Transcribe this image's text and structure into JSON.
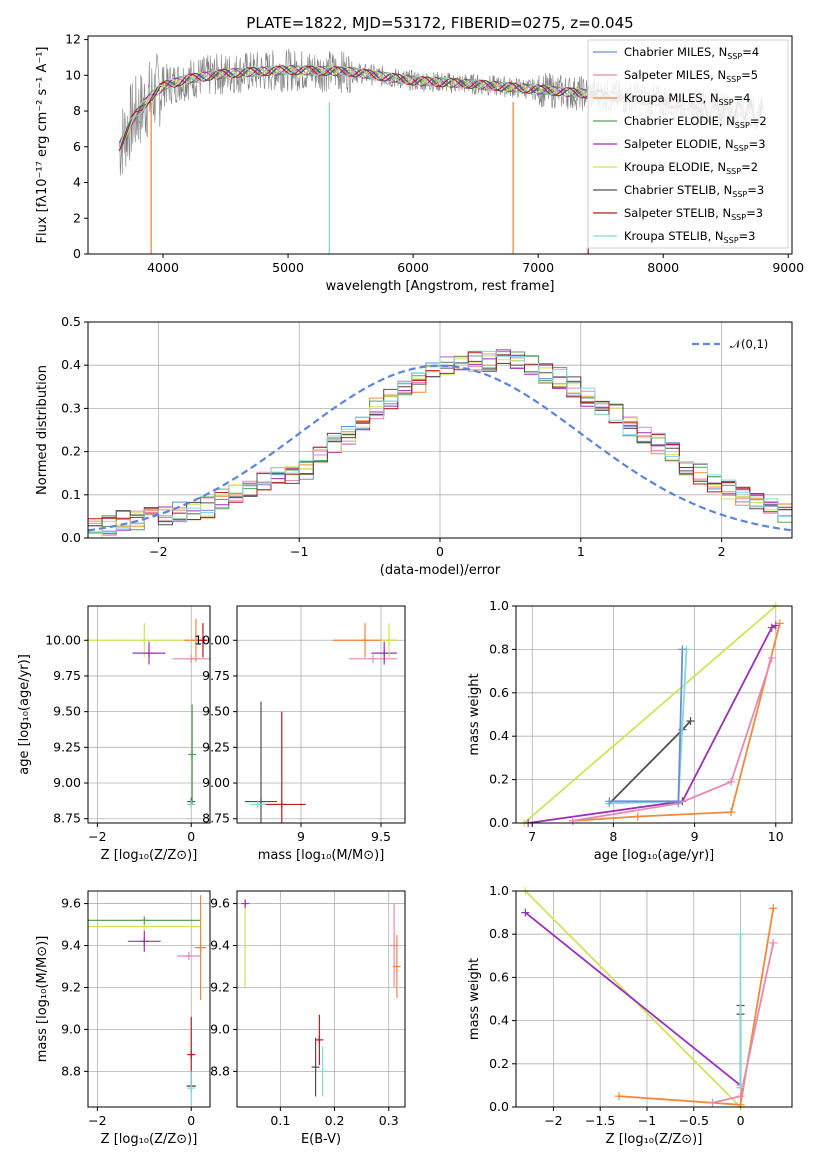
{
  "title": "PLATE=1822, MJD=53172, FIBERID=0275, z=0.045",
  "colors": {
    "Chabrier MILES": "#6b8ed6",
    "Salpeter MILES": "#e889b4",
    "Kroupa MILES": "#f08a3c",
    "Chabrier ELODIE": "#5aa05a",
    "Salpeter ELODIE": "#9b30b8",
    "Kroupa ELODIE": "#d2e25a",
    "Chabrier STELIB": "#505050",
    "Salpeter STELIB": "#b51e1e",
    "Kroupa STELIB": "#86d8e0",
    "data": "#7f7f7f",
    "normal": "#5b86d6"
  },
  "chart_data": [
    {
      "type": "line",
      "xlabel": "wavelength [Angstrom, rest frame]",
      "ylabel": "Flux [fλ10⁻¹⁷ erg cm⁻² s⁻¹ A⁻¹]",
      "xlim": [
        3400,
        9030
      ],
      "ylim": [
        0,
        12.2
      ],
      "xticks": [
        4000,
        5000,
        6000,
        7000,
        8000,
        9000
      ],
      "yticks": [
        0,
        2,
        4,
        6,
        8,
        10,
        12
      ],
      "legend": "right",
      "legend_entries": [
        "Chabrier MILES, N_SSP=4",
        "Salpeter MILES, N_SSP=5",
        "Kroupa MILES, N_SSP=4",
        "Chabrier ELODIE, N_SSP=2",
        "Salpeter ELODIE, N_SSP=3",
        "Kroupa ELODIE, N_SSP=2",
        "Chabrier STELIB, N_SSP=3",
        "Salpeter STELIB, N_SSP=3",
        "Kroupa STELIB, N_SSP=3"
      ],
      "model_continuum": {
        "x": [
          3650,
          3750,
          3900,
          4000,
          4200,
          4500,
          5000,
          5500,
          6000,
          6500,
          7000,
          7500,
          8000,
          8500,
          8800
        ],
        "y": [
          6.0,
          7.5,
          8.8,
          9.4,
          9.8,
          10.1,
          10.3,
          10.2,
          9.7,
          9.5,
          9.2,
          8.9,
          8.5,
          8.0,
          7.8
        ]
      }
    },
    {
      "type": "step",
      "xlabel": "(data-model)/error",
      "ylabel": "Normed distribution",
      "xlim": [
        -2.5,
        2.5
      ],
      "ylim": [
        0,
        0.5
      ],
      "xticks": [
        -2,
        -1,
        0,
        1,
        2
      ],
      "yticks": [
        0.0,
        0.1,
        0.2,
        0.3,
        0.4,
        0.5
      ],
      "legend_label": "𝒩(0,1)",
      "bin_edges_start": -2.5,
      "bin_width": 0.1,
      "histogram_base": [
        0.02,
        0.03,
        0.04,
        0.04,
        0.05,
        0.05,
        0.06,
        0.06,
        0.07,
        0.09,
        0.1,
        0.11,
        0.13,
        0.14,
        0.15,
        0.16,
        0.19,
        0.22,
        0.24,
        0.27,
        0.3,
        0.32,
        0.34,
        0.36,
        0.39,
        0.4,
        0.4,
        0.41,
        0.41,
        0.42,
        0.41,
        0.4,
        0.38,
        0.37,
        0.35,
        0.33,
        0.31,
        0.29,
        0.26,
        0.24,
        0.22,
        0.2,
        0.17,
        0.15,
        0.13,
        0.11,
        0.1,
        0.09,
        0.07,
        0.06
      ],
      "normal": {
        "mu": 0,
        "sigma": 1
      }
    },
    {
      "type": "scatter",
      "xlabel": "Z [log₁₀(Z/Z⊙)]",
      "ylabel": "age  [log₁₀(age/yr)]",
      "xlim": [
        -2.2,
        0.4
      ],
      "ylim": [
        8.72,
        10.24
      ],
      "xticks": [
        -2,
        0
      ],
      "yticks": [
        8.75,
        9.0,
        9.25,
        9.5,
        9.75,
        10.0
      ],
      "points": [
        {
          "m": "Kroupa ELODIE",
          "x": -1.0,
          "y": 10.0,
          "ex": 1.2,
          "ey": 0.12
        },
        {
          "m": "Salpeter ELODIE",
          "x": -0.9,
          "y": 9.91,
          "ex": 0.35,
          "ey": 0.08
        },
        {
          "m": "Salpeter MILES",
          "x": 0.0,
          "y": 9.87,
          "ex": 0.4,
          "ey": 0.0
        },
        {
          "m": "Kroupa MILES",
          "x": 0.1,
          "y": 10.0,
          "ex": 0.25,
          "ey": 0.15
        },
        {
          "m": "Salpeter STELIB",
          "x": 0.25,
          "y": 10.0,
          "ex": 0.05,
          "ey": 0.12
        },
        {
          "m": "Chabrier STELIB",
          "x": 0.0,
          "y": 8.87,
          "ex": 0.03,
          "ey": 0.0
        },
        {
          "m": "Kroupa STELIB",
          "x": 0.0,
          "y": 8.85,
          "ex": 0.05,
          "ey": 0.0
        },
        {
          "m": "Chabrier ELODIE",
          "x": 0.02,
          "y": 9.2,
          "ex": 0.0,
          "ey": 0.35
        }
      ]
    },
    {
      "type": "scatter",
      "xlabel": "mass [log₁₀(M/M⊙)]",
      "ylabel": "",
      "xlim": [
        8.6,
        9.65
      ],
      "ylim": [
        8.72,
        10.24
      ],
      "xticks": [
        9.0,
        9.5
      ],
      "yticks": [
        8.75,
        9.0,
        9.25,
        9.5,
        9.75,
        10.0
      ],
      "points": [
        {
          "m": "Kroupa MILES",
          "x": 9.4,
          "y": 10.0,
          "ex": 0.2,
          "ey": 0.12
        },
        {
          "m": "Salpeter MILES",
          "x": 9.45,
          "y": 9.87,
          "ex": 0.15,
          "ey": 0.0
        },
        {
          "m": "Salpeter ELODIE",
          "x": 9.52,
          "y": 9.91,
          "ex": 0.08,
          "ey": 0.08
        },
        {
          "m": "Kroupa ELODIE",
          "x": 9.55,
          "y": 10.0,
          "ex": 0.05,
          "ey": 0.12
        },
        {
          "m": "Chabrier STELIB",
          "x": 8.75,
          "y": 8.87,
          "ex": 0.1,
          "ey": 0.7
        },
        {
          "m": "Salpeter STELIB",
          "x": 8.88,
          "y": 8.85,
          "ex": 0.15,
          "ey": 0.65
        },
        {
          "m": "Kroupa STELIB",
          "x": 8.73,
          "y": 8.85,
          "ex": 0.05,
          "ey": 0.0
        }
      ]
    },
    {
      "type": "line",
      "xlabel": "age  [log₁₀(age/yr)]",
      "ylabel": "mass weight",
      "xlim": [
        6.8,
        10.2
      ],
      "ylim": [
        0,
        1.0
      ],
      "xticks": [
        7,
        8,
        9,
        10
      ],
      "yticks": [
        0.0,
        0.2,
        0.4,
        0.6,
        0.8,
        1.0
      ],
      "series": [
        {
          "m": "Kroupa ELODIE",
          "x": [
            6.9,
            10.0
          ],
          "y": [
            0.0,
            1.0
          ]
        },
        {
          "m": "Salpeter ELODIE",
          "x": [
            6.95,
            8.85,
            9.95,
            10.0
          ],
          "y": [
            0.0,
            0.1,
            0.9,
            0.91
          ]
        },
        {
          "m": "Kroupa MILES",
          "x": [
            7.5,
            8.3,
            9.45,
            10.05
          ],
          "y": [
            0.01,
            0.03,
            0.05,
            0.92
          ]
        },
        {
          "m": "Salpeter MILES",
          "x": [
            7.5,
            8.8,
            9.45,
            9.95
          ],
          "y": [
            0.01,
            0.09,
            0.19,
            0.76
          ]
        },
        {
          "m": "Chabrier STELIB",
          "x": [
            7.95,
            8.85,
            8.95
          ],
          "y": [
            0.09,
            0.43,
            0.47
          ]
        },
        {
          "m": "Kroupa STELIB",
          "x": [
            7.95,
            8.8,
            8.9
          ],
          "y": [
            0.09,
            0.1,
            0.8
          ]
        },
        {
          "m": "Chabrier MILES",
          "x": [
            7.95,
            8.8,
            8.85
          ],
          "y": [
            0.1,
            0.1,
            0.8
          ]
        }
      ]
    },
    {
      "type": "scatter",
      "xlabel": "Z [log₁₀(Z/Z⊙)]",
      "ylabel": "mass [log₁₀(M/M⊙)]",
      "xlim": [
        -2.2,
        0.4
      ],
      "ylim": [
        8.63,
        9.66
      ],
      "xticks": [
        -2,
        0
      ],
      "yticks": [
        8.8,
        9.0,
        9.2,
        9.4,
        9.6
      ],
      "points": [
        {
          "m": "Kroupa ELODIE",
          "x": -1.0,
          "y": 9.49,
          "ex": 1.2,
          "ey": 0.0
        },
        {
          "m": "Chabrier ELODIE",
          "x": -1.0,
          "y": 9.52,
          "ex": 1.2,
          "ey": 0.0
        },
        {
          "m": "Salpeter ELODIE",
          "x": -1.0,
          "y": 9.42,
          "ex": 0.35,
          "ey": 0.05
        },
        {
          "m": "Salpeter MILES",
          "x": -0.05,
          "y": 9.35,
          "ex": 0.25,
          "ey": 0.0
        },
        {
          "m": "Kroupa MILES",
          "x": 0.2,
          "y": 9.39,
          "ex": 0.12,
          "ey": 0.25
        },
        {
          "m": "Salpeter STELIB",
          "x": 0.0,
          "y": 8.88,
          "ex": 0.05,
          "ey": 0.18
        },
        {
          "m": "Chabrier STELIB",
          "x": 0.0,
          "y": 8.73,
          "ex": 0.1,
          "ey": 0.0
        },
        {
          "m": "Kroupa STELIB",
          "x": 0.0,
          "y": 8.72,
          "ex": 0.02,
          "ey": 0.08
        }
      ]
    },
    {
      "type": "scatter",
      "xlabel": "E(B-V)",
      "ylabel": "",
      "xlim": [
        0.02,
        0.33
      ],
      "ylim": [
        8.63,
        9.66
      ],
      "xticks": [
        0.1,
        0.2,
        0.3
      ],
      "yticks": [
        8.8,
        9.0,
        9.2,
        9.4,
        9.6
      ],
      "points": [
        {
          "m": "Kroupa ELODIE",
          "x": 0.035,
          "y": 9.4,
          "ex": 0.0,
          "ey": 0.2
        },
        {
          "m": "Salpeter ELODIE",
          "x": 0.035,
          "y": 9.6,
          "ex": 0.0,
          "ey": 0.02
        },
        {
          "m": "Chabrier STELIB",
          "x": 0.165,
          "y": 8.82,
          "ex": 0.0,
          "ey": 0.14
        },
        {
          "m": "Salpeter STELIB",
          "x": 0.172,
          "y": 8.95,
          "ex": 0.0,
          "ey": 0.12
        },
        {
          "m": "Kroupa STELIB",
          "x": 0.178,
          "y": 8.8,
          "ex": 0.0,
          "ey": 0.12
        },
        {
          "m": "Salpeter MILES",
          "x": 0.31,
          "y": 9.4,
          "ex": 0.0,
          "ey": 0.2
        },
        {
          "m": "Kroupa MILES",
          "x": 0.315,
          "y": 9.3,
          "ex": 0.0,
          "ey": 0.15
        }
      ]
    },
    {
      "type": "line",
      "xlabel": "Z [log₁₀(Z/Z⊙)]",
      "ylabel": "mass weight",
      "xlim": [
        -2.4,
        0.55
      ],
      "ylim": [
        0,
        1.0
      ],
      "xticks": [
        -2.0,
        -1.5,
        -1.0,
        -0.5,
        0.0
      ],
      "yticks": [
        0.0,
        0.2,
        0.4,
        0.6,
        0.8,
        1.0
      ],
      "series": [
        {
          "m": "Kroupa ELODIE",
          "x": [
            -2.3,
            0.0
          ],
          "y": [
            1.0,
            0.0
          ]
        },
        {
          "m": "Salpeter ELODIE",
          "x": [
            -2.3,
            0.0
          ],
          "y": [
            0.9,
            0.1
          ]
        },
        {
          "m": "Kroupa MILES",
          "x": [
            -1.3,
            0.0,
            0.35
          ],
          "y": [
            0.05,
            0.01,
            0.92
          ]
        },
        {
          "m": "Salpeter MILES",
          "x": [
            -0.3,
            0.0,
            0.35
          ],
          "y": [
            0.02,
            0.05,
            0.76
          ]
        },
        {
          "m": "Chabrier STELIB",
          "x": [
            0.0,
            0.0,
            0.0
          ],
          "y": [
            0.09,
            0.43,
            0.47
          ]
        },
        {
          "m": "Kroupa STELIB",
          "x": [
            0.0,
            0.0,
            0.0
          ],
          "y": [
            0.09,
            0.1,
            0.8
          ]
        }
      ]
    }
  ]
}
